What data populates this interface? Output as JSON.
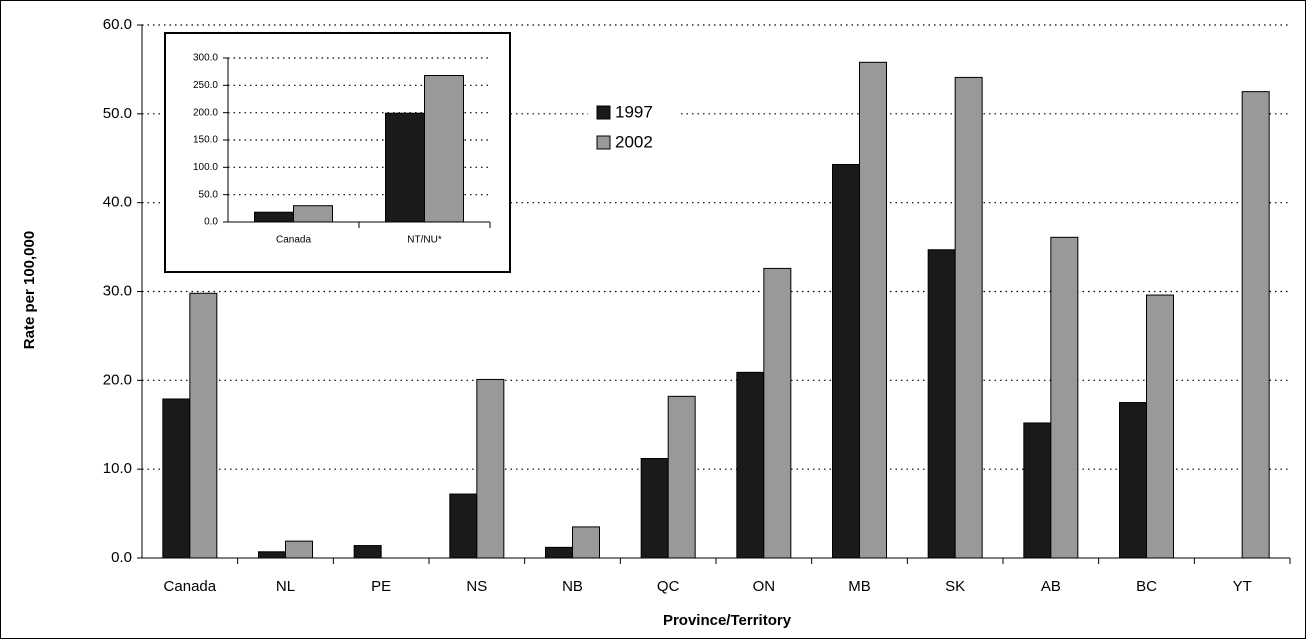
{
  "chart_data": [
    {
      "type": "bar",
      "x_label": "Province/Territory",
      "y_label": "Rate per 100,000",
      "categories": [
        "Canada",
        "NL",
        "PE",
        "NS",
        "NB",
        "QC",
        "ON",
        "MB",
        "SK",
        "AB",
        "BC",
        "YT"
      ],
      "series": [
        {
          "name": "1997",
          "color": "#1a1a1a",
          "values": [
            17.9,
            0.7,
            1.4,
            7.2,
            1.2,
            11.2,
            20.9,
            44.3,
            34.7,
            15.2,
            17.5,
            null
          ]
        },
        {
          "name": "2002",
          "color": "#999999",
          "values": [
            29.8,
            1.9,
            null,
            20.1,
            3.5,
            18.2,
            32.6,
            55.8,
            54.1,
            36.1,
            29.6,
            52.5
          ]
        }
      ],
      "ylim": [
        0,
        60
      ],
      "yticks": [
        {
          "value": 0,
          "label": "0.0"
        },
        {
          "value": 10,
          "label": "10.0"
        },
        {
          "value": 20,
          "label": "20.0"
        },
        {
          "value": 30,
          "label": "30.0"
        },
        {
          "value": 40,
          "label": "40.0"
        },
        {
          "value": 50,
          "label": "50.0"
        },
        {
          "value": 60,
          "label": "60.0"
        }
      ],
      "grid": true
    },
    {
      "type": "bar",
      "categories": [
        "Canada",
        "NT/NU*"
      ],
      "series": [
        {
          "color": "#1a1a1a",
          "values": [
            17.9,
            199
          ]
        },
        {
          "color": "#999999",
          "values": [
            29.8,
            268
          ]
        }
      ],
      "ylim": [
        0,
        300
      ],
      "yticks": [
        {
          "value": 0,
          "label": "0.0"
        },
        {
          "value": 50,
          "label": "50.0"
        },
        {
          "value": 100,
          "label": "100.0"
        },
        {
          "value": 150,
          "label": "150.0"
        },
        {
          "value": 200,
          "label": "200.0"
        },
        {
          "value": 250,
          "label": "250.0"
        },
        {
          "value": 300,
          "label": "300.0"
        }
      ],
      "grid": true
    }
  ]
}
